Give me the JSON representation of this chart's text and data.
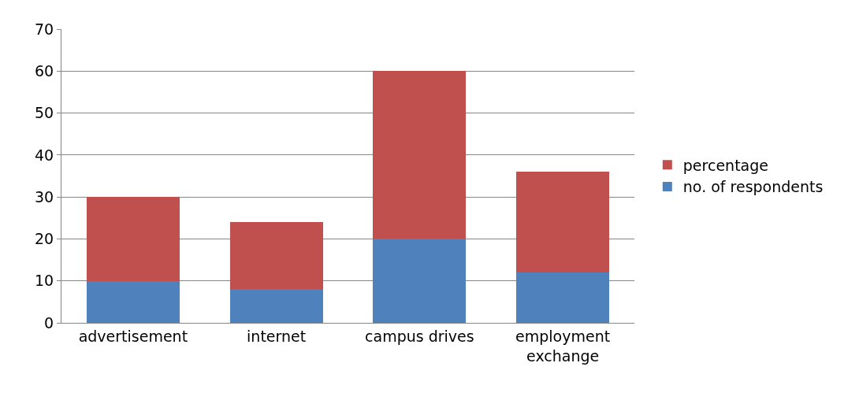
{
  "chart_data": {
    "type": "bar",
    "stacked": true,
    "categories": [
      "advertisement",
      "internet",
      "campus drives",
      "employment exchange"
    ],
    "series": [
      {
        "name": "no. of respondents",
        "color": "#4f81bd",
        "values": [
          10,
          8,
          20,
          12
        ]
      },
      {
        "name": "percentage",
        "color": "#c0504d",
        "values": [
          20,
          16,
          40,
          24
        ]
      }
    ],
    "ylim": [
      0,
      70
    ],
    "yticks": [
      0,
      10,
      20,
      30,
      40,
      50,
      60,
      70
    ],
    "grid": "y",
    "legend": "right"
  }
}
